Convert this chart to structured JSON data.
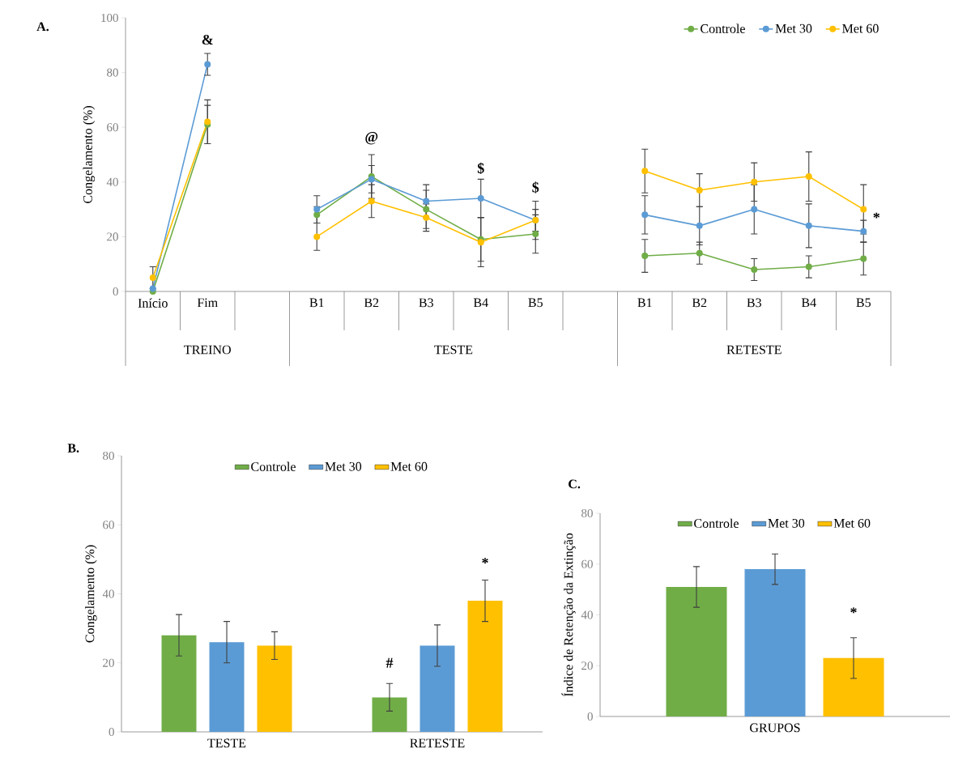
{
  "chart_data": [
    {
      "type": "line",
      "title": "A.",
      "ylabel": "Congelamento (%)",
      "categories": [
        "Início",
        "Fim",
        null,
        "B1",
        "B2",
        "B3",
        "B4",
        "B5",
        null,
        "B1",
        "B2",
        "B3",
        "B4",
        "B5"
      ],
      "ylim": [
        0,
        100
      ],
      "yticks": [
        0,
        20,
        40,
        60,
        80,
        100
      ],
      "marker": "circle",
      "legend": "top right",
      "series": [
        {
          "name": "Controle",
          "color": "#70ad47",
          "values": [
            0,
            61,
            null,
            28,
            42,
            30,
            19,
            21,
            null,
            13,
            14,
            8,
            9,
            12
          ],
          "errors": [
            null,
            7,
            null,
            3,
            8,
            7,
            8,
            7,
            null,
            6,
            4,
            4,
            4,
            6
          ]
        },
        {
          "name": "Met 30",
          "color": "#5b9bd5",
          "values": [
            1,
            83,
            null,
            30,
            41,
            33,
            34,
            26,
            null,
            28,
            24,
            30,
            24,
            22
          ],
          "errors": [
            null,
            4,
            null,
            5,
            5,
            6,
            7,
            4,
            null,
            7,
            7,
            9,
            8,
            4
          ]
        },
        {
          "name": "Met 60",
          "color": "#ffc000",
          "values": [
            5,
            62,
            null,
            20,
            33,
            27,
            18,
            26,
            null,
            44,
            37,
            40,
            42,
            30
          ],
          "errors": [
            4,
            8,
            null,
            5,
            6,
            5,
            9,
            7,
            null,
            8,
            6,
            7,
            9,
            9
          ]
        }
      ],
      "annotations": [
        "TREINO",
        "TESTE",
        "RETESTE",
        "&",
        "@",
        "$",
        "$",
        "*"
      ]
    },
    {
      "type": "bar",
      "title": "B.",
      "ylabel": "Congelamento (%)",
      "categories": [
        "TESTE",
        "RETESTE"
      ],
      "ylim": [
        0,
        80
      ],
      "yticks": [
        0,
        20,
        40,
        60,
        80
      ],
      "legend": "top",
      "series": [
        {
          "name": "Controle",
          "color": "#70ad47",
          "values": [
            28,
            10
          ],
          "errors": [
            6,
            4
          ]
        },
        {
          "name": "Met 30",
          "color": "#5b9bd5",
          "values": [
            26,
            25
          ],
          "errors": [
            6,
            6
          ]
        },
        {
          "name": "Met 60",
          "color": "#ffc000",
          "values": [
            25,
            38
          ],
          "errors": [
            4,
            6
          ]
        }
      ],
      "annotations": [
        "#",
        "*"
      ]
    },
    {
      "type": "bar",
      "title": "C.",
      "ylabel": "Índice de Retenção da Extinção",
      "categories": [
        "GRUPOS"
      ],
      "ylim": [
        0,
        80
      ],
      "yticks": [
        0,
        20,
        40,
        60,
        80
      ],
      "legend": "top",
      "series": [
        {
          "name": "Controle",
          "color": "#70ad47",
          "values": [
            51
          ],
          "errors": [
            8
          ]
        },
        {
          "name": "Met 30",
          "color": "#5b9bd5",
          "values": [
            58
          ],
          "errors": [
            6
          ]
        },
        {
          "name": "Met 60",
          "color": "#ffc000",
          "values": [
            23
          ],
          "errors": [
            8
          ]
        }
      ],
      "annotations": [
        "*"
      ]
    }
  ]
}
